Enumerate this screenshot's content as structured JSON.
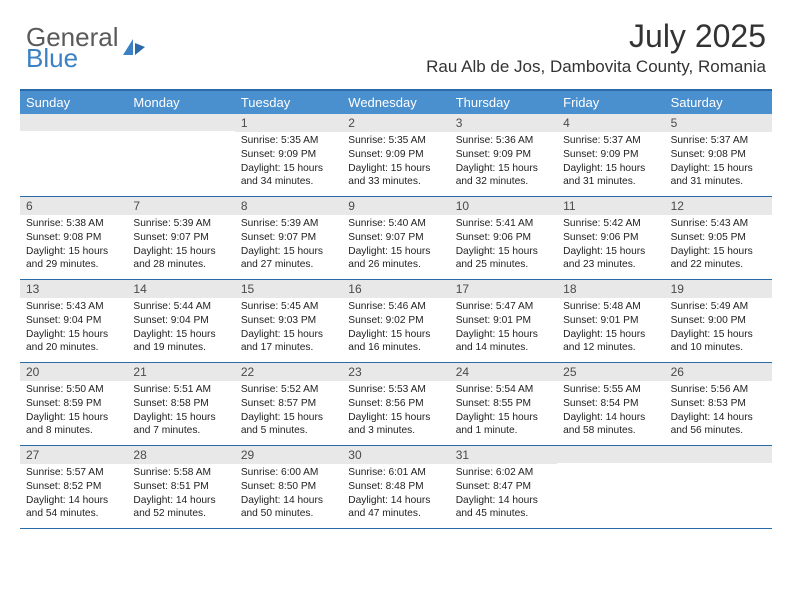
{
  "brand": {
    "word1": "General",
    "word2": "Blue"
  },
  "title": {
    "month_year": "July 2025",
    "location": "Rau Alb de Jos, Dambovita County, Romania"
  },
  "colors": {
    "header_bg": "#4a8fce",
    "header_border": "#2b6aa8",
    "daynum_bg": "#e8e8e8",
    "text": "#222222",
    "brand_gray": "#5a5a5a",
    "brand_blue": "#3b81c3",
    "page_bg": "#ffffff"
  },
  "typography": {
    "month_year_pt": 32,
    "location_pt": 17,
    "dayhead_pt": 13,
    "daynum_pt": 12,
    "cell_pt": 10.2,
    "logo_pt": 26
  },
  "dayhead": [
    "Sunday",
    "Monday",
    "Tuesday",
    "Wednesday",
    "Thursday",
    "Friday",
    "Saturday"
  ],
  "weeks": [
    [
      {
        "n": "",
        "sr": "",
        "ss": "",
        "dl": ""
      },
      {
        "n": "",
        "sr": "",
        "ss": "",
        "dl": ""
      },
      {
        "n": "1",
        "sr": "Sunrise: 5:35 AM",
        "ss": "Sunset: 9:09 PM",
        "dl": "Daylight: 15 hours and 34 minutes."
      },
      {
        "n": "2",
        "sr": "Sunrise: 5:35 AM",
        "ss": "Sunset: 9:09 PM",
        "dl": "Daylight: 15 hours and 33 minutes."
      },
      {
        "n": "3",
        "sr": "Sunrise: 5:36 AM",
        "ss": "Sunset: 9:09 PM",
        "dl": "Daylight: 15 hours and 32 minutes."
      },
      {
        "n": "4",
        "sr": "Sunrise: 5:37 AM",
        "ss": "Sunset: 9:09 PM",
        "dl": "Daylight: 15 hours and 31 minutes."
      },
      {
        "n": "5",
        "sr": "Sunrise: 5:37 AM",
        "ss": "Sunset: 9:08 PM",
        "dl": "Daylight: 15 hours and 31 minutes."
      }
    ],
    [
      {
        "n": "6",
        "sr": "Sunrise: 5:38 AM",
        "ss": "Sunset: 9:08 PM",
        "dl": "Daylight: 15 hours and 29 minutes."
      },
      {
        "n": "7",
        "sr": "Sunrise: 5:39 AM",
        "ss": "Sunset: 9:07 PM",
        "dl": "Daylight: 15 hours and 28 minutes."
      },
      {
        "n": "8",
        "sr": "Sunrise: 5:39 AM",
        "ss": "Sunset: 9:07 PM",
        "dl": "Daylight: 15 hours and 27 minutes."
      },
      {
        "n": "9",
        "sr": "Sunrise: 5:40 AM",
        "ss": "Sunset: 9:07 PM",
        "dl": "Daylight: 15 hours and 26 minutes."
      },
      {
        "n": "10",
        "sr": "Sunrise: 5:41 AM",
        "ss": "Sunset: 9:06 PM",
        "dl": "Daylight: 15 hours and 25 minutes."
      },
      {
        "n": "11",
        "sr": "Sunrise: 5:42 AM",
        "ss": "Sunset: 9:06 PM",
        "dl": "Daylight: 15 hours and 23 minutes."
      },
      {
        "n": "12",
        "sr": "Sunrise: 5:43 AM",
        "ss": "Sunset: 9:05 PM",
        "dl": "Daylight: 15 hours and 22 minutes."
      }
    ],
    [
      {
        "n": "13",
        "sr": "Sunrise: 5:43 AM",
        "ss": "Sunset: 9:04 PM",
        "dl": "Daylight: 15 hours and 20 minutes."
      },
      {
        "n": "14",
        "sr": "Sunrise: 5:44 AM",
        "ss": "Sunset: 9:04 PM",
        "dl": "Daylight: 15 hours and 19 minutes."
      },
      {
        "n": "15",
        "sr": "Sunrise: 5:45 AM",
        "ss": "Sunset: 9:03 PM",
        "dl": "Daylight: 15 hours and 17 minutes."
      },
      {
        "n": "16",
        "sr": "Sunrise: 5:46 AM",
        "ss": "Sunset: 9:02 PM",
        "dl": "Daylight: 15 hours and 16 minutes."
      },
      {
        "n": "17",
        "sr": "Sunrise: 5:47 AM",
        "ss": "Sunset: 9:01 PM",
        "dl": "Daylight: 15 hours and 14 minutes."
      },
      {
        "n": "18",
        "sr": "Sunrise: 5:48 AM",
        "ss": "Sunset: 9:01 PM",
        "dl": "Daylight: 15 hours and 12 minutes."
      },
      {
        "n": "19",
        "sr": "Sunrise: 5:49 AM",
        "ss": "Sunset: 9:00 PM",
        "dl": "Daylight: 15 hours and 10 minutes."
      }
    ],
    [
      {
        "n": "20",
        "sr": "Sunrise: 5:50 AM",
        "ss": "Sunset: 8:59 PM",
        "dl": "Daylight: 15 hours and 8 minutes."
      },
      {
        "n": "21",
        "sr": "Sunrise: 5:51 AM",
        "ss": "Sunset: 8:58 PM",
        "dl": "Daylight: 15 hours and 7 minutes."
      },
      {
        "n": "22",
        "sr": "Sunrise: 5:52 AM",
        "ss": "Sunset: 8:57 PM",
        "dl": "Daylight: 15 hours and 5 minutes."
      },
      {
        "n": "23",
        "sr": "Sunrise: 5:53 AM",
        "ss": "Sunset: 8:56 PM",
        "dl": "Daylight: 15 hours and 3 minutes."
      },
      {
        "n": "24",
        "sr": "Sunrise: 5:54 AM",
        "ss": "Sunset: 8:55 PM",
        "dl": "Daylight: 15 hours and 1 minute."
      },
      {
        "n": "25",
        "sr": "Sunrise: 5:55 AM",
        "ss": "Sunset: 8:54 PM",
        "dl": "Daylight: 14 hours and 58 minutes."
      },
      {
        "n": "26",
        "sr": "Sunrise: 5:56 AM",
        "ss": "Sunset: 8:53 PM",
        "dl": "Daylight: 14 hours and 56 minutes."
      }
    ],
    [
      {
        "n": "27",
        "sr": "Sunrise: 5:57 AM",
        "ss": "Sunset: 8:52 PM",
        "dl": "Daylight: 14 hours and 54 minutes."
      },
      {
        "n": "28",
        "sr": "Sunrise: 5:58 AM",
        "ss": "Sunset: 8:51 PM",
        "dl": "Daylight: 14 hours and 52 minutes."
      },
      {
        "n": "29",
        "sr": "Sunrise: 6:00 AM",
        "ss": "Sunset: 8:50 PM",
        "dl": "Daylight: 14 hours and 50 minutes."
      },
      {
        "n": "30",
        "sr": "Sunrise: 6:01 AM",
        "ss": "Sunset: 8:48 PM",
        "dl": "Daylight: 14 hours and 47 minutes."
      },
      {
        "n": "31",
        "sr": "Sunrise: 6:02 AM",
        "ss": "Sunset: 8:47 PM",
        "dl": "Daylight: 14 hours and 45 minutes."
      },
      {
        "n": "",
        "sr": "",
        "ss": "",
        "dl": ""
      },
      {
        "n": "",
        "sr": "",
        "ss": "",
        "dl": ""
      }
    ]
  ]
}
